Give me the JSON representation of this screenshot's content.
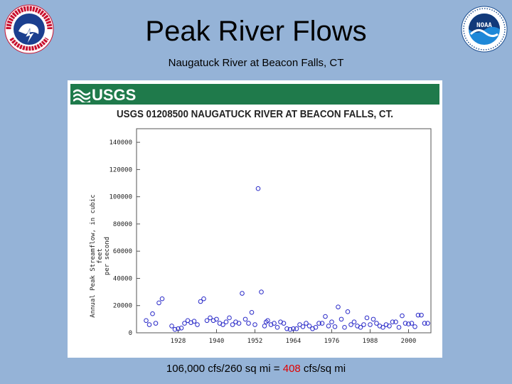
{
  "slide": {
    "title": "Peak River Flows",
    "subtitle": "Naugatuck River at Beacon Falls, CT",
    "footer_pre": "106,000 cfs/260 sq mi = ",
    "footer_highlight": "408",
    "footer_post": " cfs/sq mi",
    "highlight_color": "#e00000",
    "background": "#95b3d7"
  },
  "logos": {
    "left": {
      "text": "NATIONAL WEATHER SERVICE",
      "icon": "nws-logo-icon"
    },
    "right": {
      "text": "NOAA",
      "icon": "noaa-logo-icon"
    }
  },
  "usgs": {
    "brand": "USGS",
    "bar_color": "#1f7a4b"
  },
  "chart_data": {
    "type": "scatter",
    "title": "USGS 01208500 NAUGATUCK RIVER AT BEACON FALLS, CT.",
    "ylabel_line1": "Annual Peak Streamflow, in cubic feet",
    "ylabel_line2": "per second",
    "xlabel": "",
    "ylim": [
      0,
      150000
    ],
    "xlim": [
      1915,
      2007
    ],
    "x_ticks": [
      1928,
      1940,
      1952,
      1964,
      1976,
      1988,
      2000
    ],
    "y_ticks": [
      0,
      20000,
      40000,
      60000,
      80000,
      100000,
      120000,
      140000
    ],
    "marker_color": "#2a2ac8",
    "grid": false,
    "x": [
      1918,
      1919,
      1920,
      1921,
      1922,
      1923,
      1926,
      1927,
      1928,
      1929,
      1930,
      1931,
      1932,
      1933,
      1934,
      1935,
      1936,
      1937,
      1938,
      1939,
      1940,
      1941,
      1942,
      1943,
      1944,
      1945,
      1946,
      1947,
      1948,
      1949,
      1950,
      1951,
      1952,
      1953,
      1954,
      1955,
      1955.5,
      1956,
      1957,
      1958,
      1959,
      1960,
      1961,
      1962,
      1963,
      1964,
      1965,
      1966,
      1967,
      1968,
      1969,
      1970,
      1971,
      1972,
      1973,
      1974,
      1975,
      1976,
      1977,
      1978,
      1979,
      1980,
      1981,
      1982,
      1983,
      1984,
      1985,
      1986,
      1987,
      1988,
      1989,
      1990,
      1991,
      1992,
      1993,
      1994,
      1995,
      1996,
      1997,
      1998,
      1999,
      2000,
      2001,
      2002,
      2003,
      2004,
      2005,
      2006
    ],
    "y": [
      9000,
      6000,
      14000,
      7000,
      22000,
      25000,
      5000,
      2500,
      3000,
      3500,
      7000,
      9000,
      7500,
      8500,
      6000,
      23000,
      25000,
      9000,
      11000,
      9000,
      10000,
      7000,
      6000,
      8000,
      11000,
      6000,
      8000,
      7000,
      29000,
      10000,
      7000,
      15000,
      6000,
      106000,
      30000,
      5000,
      8000,
      9000,
      6000,
      7000,
      4000,
      8000,
      7000,
      3000,
      2500,
      3000,
      3000,
      6000,
      4500,
      7000,
      5000,
      3000,
      4000,
      7000,
      7000,
      12000,
      5000,
      8000,
      4500,
      19000,
      10000,
      4000,
      15500,
      6000,
      8000,
      5000,
      4000,
      6000,
      11000,
      6000,
      10000,
      7000,
      5000,
      4000,
      6000,
      5000,
      8000,
      8000,
      4000,
      12500,
      7000,
      6500,
      7000,
      4500,
      13000,
      13000,
      7000,
      7000
    ]
  }
}
